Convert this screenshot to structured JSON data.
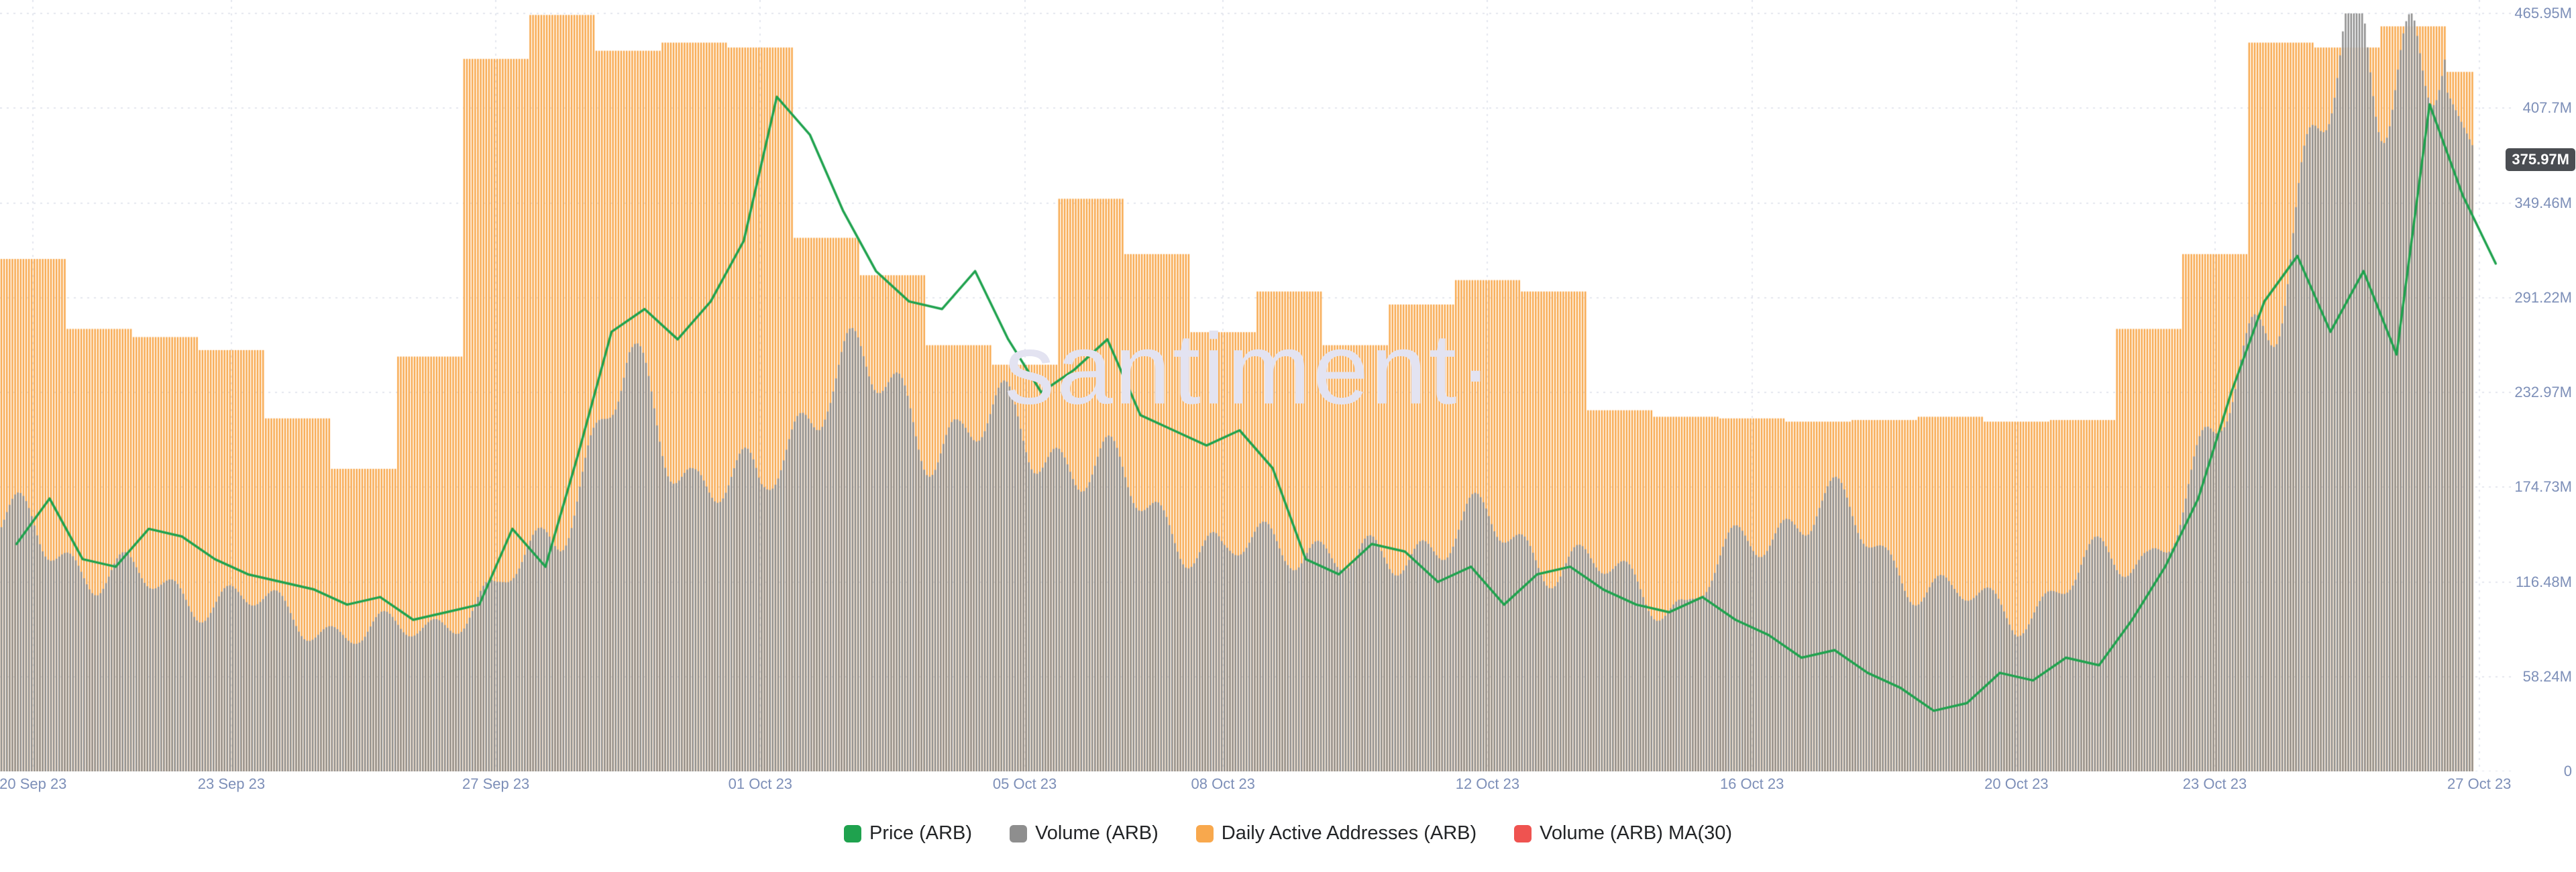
{
  "watermark": "santiment·",
  "badge": {
    "label": "375.97M",
    "value_M": 375.97
  },
  "legend": [
    {
      "label": "Price (ARB)",
      "color": "#1fa24e"
    },
    {
      "label": "Volume (ARB)",
      "color": "#8e8e8e"
    },
    {
      "label": "Daily Active Addresses (ARB)",
      "color": "#f8a84d"
    },
    {
      "label": "Volume (ARB) MA(30)",
      "color": "#ef5350"
    }
  ],
  "chart_data": {
    "type": "composite",
    "days": 38,
    "x_start_label": "20 Sep 23",
    "x_end_label": "27 Oct 23",
    "grid": "dotted",
    "legend_position": "bottom-center",
    "y_axis": {
      "max": 465.95,
      "unit": "M",
      "ticks": [
        "465.95M",
        "407.7M",
        "349.46M",
        "291.22M",
        "232.97M",
        "174.73M",
        "116.48M",
        "58.24M",
        "0"
      ]
    },
    "x_ticks": [
      {
        "label": "20 Sep 23",
        "day": 0
      },
      {
        "label": "23 Sep 23",
        "day": 3
      },
      {
        "label": "27 Sep 23",
        "day": 7
      },
      {
        "label": "01 Oct 23",
        "day": 11
      },
      {
        "label": "05 Oct 23",
        "day": 15
      },
      {
        "label": "08 Oct 23",
        "day": 18
      },
      {
        "label": "12 Oct 23",
        "day": 22
      },
      {
        "label": "16 Oct 23",
        "day": 26
      },
      {
        "label": "20 Oct 23",
        "day": 30
      },
      {
        "label": "23 Oct 23",
        "day": 33
      },
      {
        "label": "27 Oct 23",
        "day": 37
      }
    ],
    "series": [
      {
        "name": "Daily Active Addresses (ARB)",
        "type": "bar",
        "color": "#f8a84d",
        "unit": "M",
        "values": [
          315,
          272,
          267,
          259,
          217,
          186,
          255,
          438,
          465,
          443,
          448,
          445,
          328,
          305,
          262,
          250,
          352,
          318,
          270,
          295,
          262,
          287,
          302,
          295,
          222,
          218,
          217,
          215,
          216,
          218,
          215,
          216,
          272,
          318,
          448,
          445,
          458,
          430
        ]
      },
      {
        "name": "Volume (ARB)",
        "type": "bar",
        "color": "#8e8e8e",
        "unit": "M",
        "last_value_label": "375.97M",
        "values": [
          148,
          122,
          112,
          106,
          95,
          82,
          92,
          105,
          160,
          240,
          185,
          168,
          252,
          228,
          205,
          212,
          185,
          162,
          128,
          148,
          122,
          142,
          150,
          132,
          118,
          102,
          142,
          168,
          132,
          108,
          96,
          122,
          135,
          195,
          320,
          430,
          462,
          376
        ]
      },
      {
        "name": "Price (ARB)",
        "type": "line",
        "color": "#1fa24e",
        "scale": "normalized fraction of plot height (no price axis shown)",
        "points_per_day": 2,
        "values": [
          0.3,
          0.36,
          0.28,
          0.27,
          0.32,
          0.31,
          0.28,
          0.26,
          0.25,
          0.24,
          0.22,
          0.23,
          0.2,
          0.21,
          0.22,
          0.32,
          0.27,
          0.42,
          0.58,
          0.61,
          0.57,
          0.62,
          0.7,
          0.89,
          0.84,
          0.74,
          0.66,
          0.62,
          0.61,
          0.66,
          0.57,
          0.5,
          0.53,
          0.57,
          0.47,
          0.45,
          0.43,
          0.45,
          0.4,
          0.28,
          0.26,
          0.3,
          0.29,
          0.25,
          0.27,
          0.22,
          0.26,
          0.27,
          0.24,
          0.22,
          0.21,
          0.23,
          0.2,
          0.18,
          0.15,
          0.16,
          0.13,
          0.11,
          0.08,
          0.09,
          0.13,
          0.12,
          0.15,
          0.14,
          0.2,
          0.27,
          0.36,
          0.5,
          0.62,
          0.68,
          0.58,
          0.66,
          0.55,
          0.88,
          0.76,
          0.67
        ]
      },
      {
        "name": "Volume (ARB) MA(30)",
        "type": "line",
        "color": "#ef5350",
        "visible": false,
        "values": []
      }
    ]
  }
}
